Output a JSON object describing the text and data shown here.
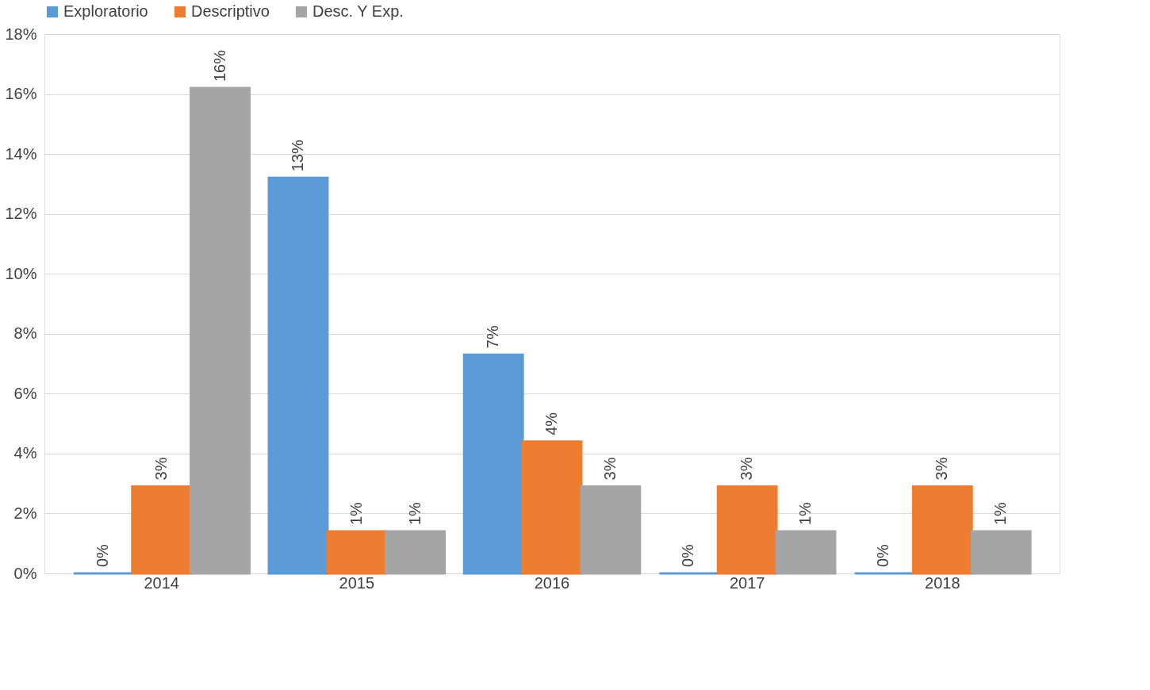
{
  "chart_data": {
    "type": "bar",
    "categories": [
      "2014",
      "2015",
      "2016",
      "2017",
      "2018"
    ],
    "series": [
      {
        "name": "Exploratorio",
        "color": "#5b9bd5",
        "values": [
          0,
          13.2,
          7.3,
          0,
          0
        ],
        "value_labels": [
          "0%",
          "13%",
          "7%",
          "0%",
          "0%"
        ]
      },
      {
        "name": "Descriptivo",
        "color": "#ed7d31",
        "values": [
          2.9,
          1.4,
          4.4,
          2.9,
          2.9
        ],
        "value_labels": [
          "3%",
          "1%",
          "4%",
          "3%",
          "3%"
        ]
      },
      {
        "name": "Desc. Y Exp.",
        "color": "#a5a5a5",
        "values": [
          16.2,
          1.4,
          2.9,
          1.4,
          1.4
        ],
        "value_labels": [
          "16%",
          "1%",
          "3%",
          "1%",
          "1%"
        ]
      }
    ],
    "ylim": [
      0,
      18
    ],
    "yticks": [
      {
        "value": 0,
        "label": "0%"
      },
      {
        "value": 2,
        "label": "2%"
      },
      {
        "value": 4,
        "label": "4%"
      },
      {
        "value": 6,
        "label": "6%"
      },
      {
        "value": 8,
        "label": "8%"
      },
      {
        "value": 10,
        "label": "10%"
      },
      {
        "value": 12,
        "label": "12%"
      },
      {
        "value": 14,
        "label": "14%"
      },
      {
        "value": 16,
        "label": "16%"
      },
      {
        "value": 18,
        "label": "18%"
      }
    ],
    "grid": "y",
    "legend": "top"
  }
}
